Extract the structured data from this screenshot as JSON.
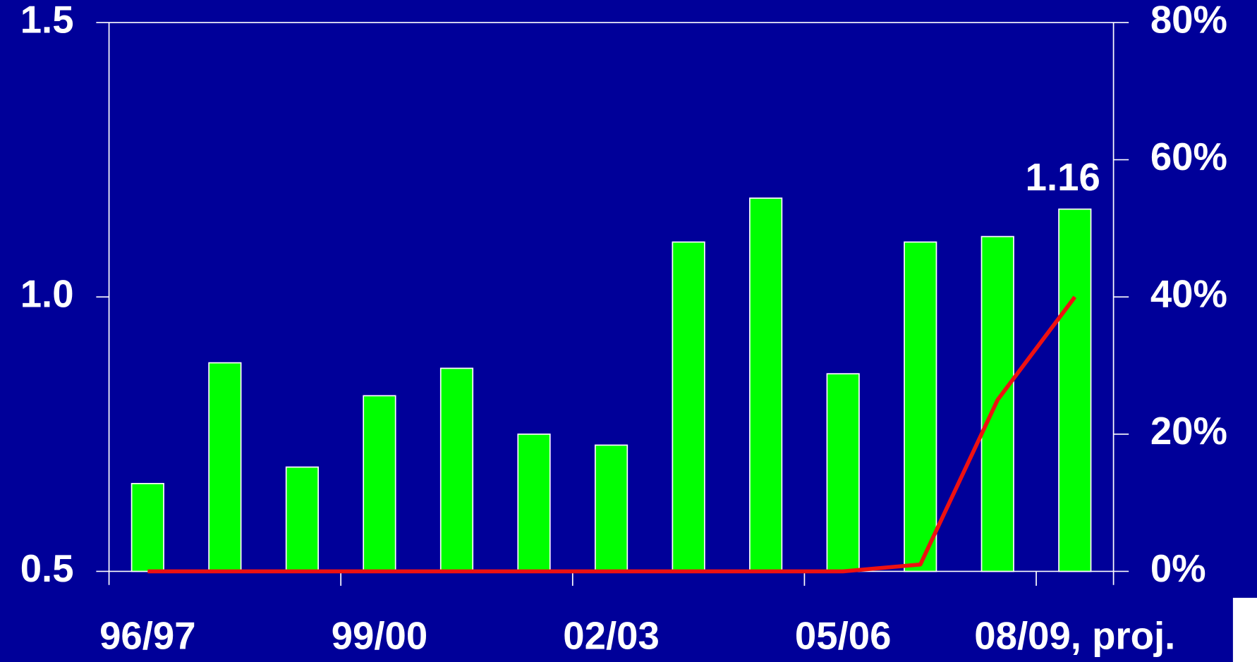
{
  "chart_data": {
    "type": "bar",
    "categories": [
      "96/97",
      null,
      null,
      "99/00",
      null,
      null,
      "02/03",
      null,
      null,
      "05/06",
      null,
      null,
      "08/09, proj."
    ],
    "series": [
      {
        "type": "bar",
        "color": "#00ff00",
        "values": [
          0.66,
          0.88,
          0.69,
          0.82,
          0.87,
          0.75,
          0.73,
          1.1,
          1.18,
          0.86,
          1.1,
          1.11,
          1.16
        ],
        "value_labels": [
          null,
          null,
          null,
          null,
          null,
          null,
          null,
          null,
          null,
          null,
          null,
          null,
          "1.16"
        ]
      },
      {
        "type": "line",
        "axis": "y2",
        "color": "#ee1111",
        "values": [
          0,
          0,
          0,
          0,
          0,
          0,
          0,
          0,
          0,
          0,
          1,
          25,
          40
        ]
      }
    ],
    "ylim": [
      0.5,
      1.5
    ],
    "yticks": [
      0.5,
      {
        "value": 1.0,
        "label": "1.0"
      },
      1.5
    ],
    "y2lim": [
      0,
      80
    ],
    "y2ticks": [
      {
        "value": 0,
        "label": "0%"
      },
      {
        "value": 20,
        "label": "20%"
      },
      {
        "value": 40,
        "label": "40%"
      },
      {
        "value": 60,
        "label": "60%"
      },
      {
        "value": 80,
        "label": "80%"
      }
    ]
  }
}
